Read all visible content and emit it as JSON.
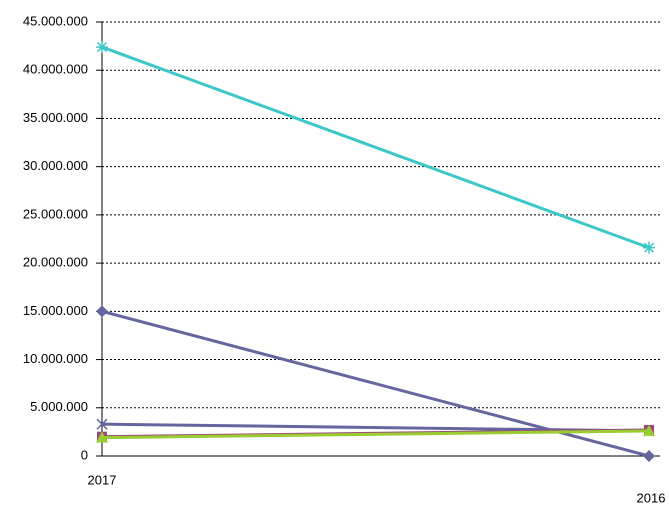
{
  "chart_data": {
    "type": "line",
    "categories": [
      "2017",
      "2016"
    ],
    "ylim": [
      0,
      45000000
    ],
    "yticks": [
      0,
      {
        "value": 5000000,
        "label": "5.000.000"
      },
      {
        "value": 10000000,
        "label": "10.000.000"
      },
      {
        "value": 15000000,
        "label": "15.000.000"
      },
      {
        "value": 20000000,
        "label": "20.000.000"
      },
      {
        "value": 25000000,
        "label": "25.000.000"
      },
      {
        "value": 30000000,
        "label": "30.000.000"
      },
      {
        "value": 35000000,
        "label": "35.000.000"
      },
      {
        "value": 40000000,
        "label": "40.000.000"
      },
      {
        "value": 45000000,
        "label": "45.000.000"
      }
    ],
    "grid": true,
    "series": [
      {
        "color": "#3cc8c8",
        "marker": "star",
        "values": [
          42400000,
          21600000
        ]
      },
      {
        "color": "#66669e",
        "marker": "diamond",
        "values": [
          15000000,
          0
        ]
      },
      {
        "color": "#66669e",
        "marker": "x",
        "values": [
          3300000,
          2600000
        ]
      },
      {
        "color": "#9c4a7c",
        "marker": "square",
        "values": [
          2000000,
          2700000
        ]
      },
      {
        "color": "#9acd32",
        "marker": "triangle",
        "values": [
          1900000,
          2600000
        ]
      }
    ]
  }
}
